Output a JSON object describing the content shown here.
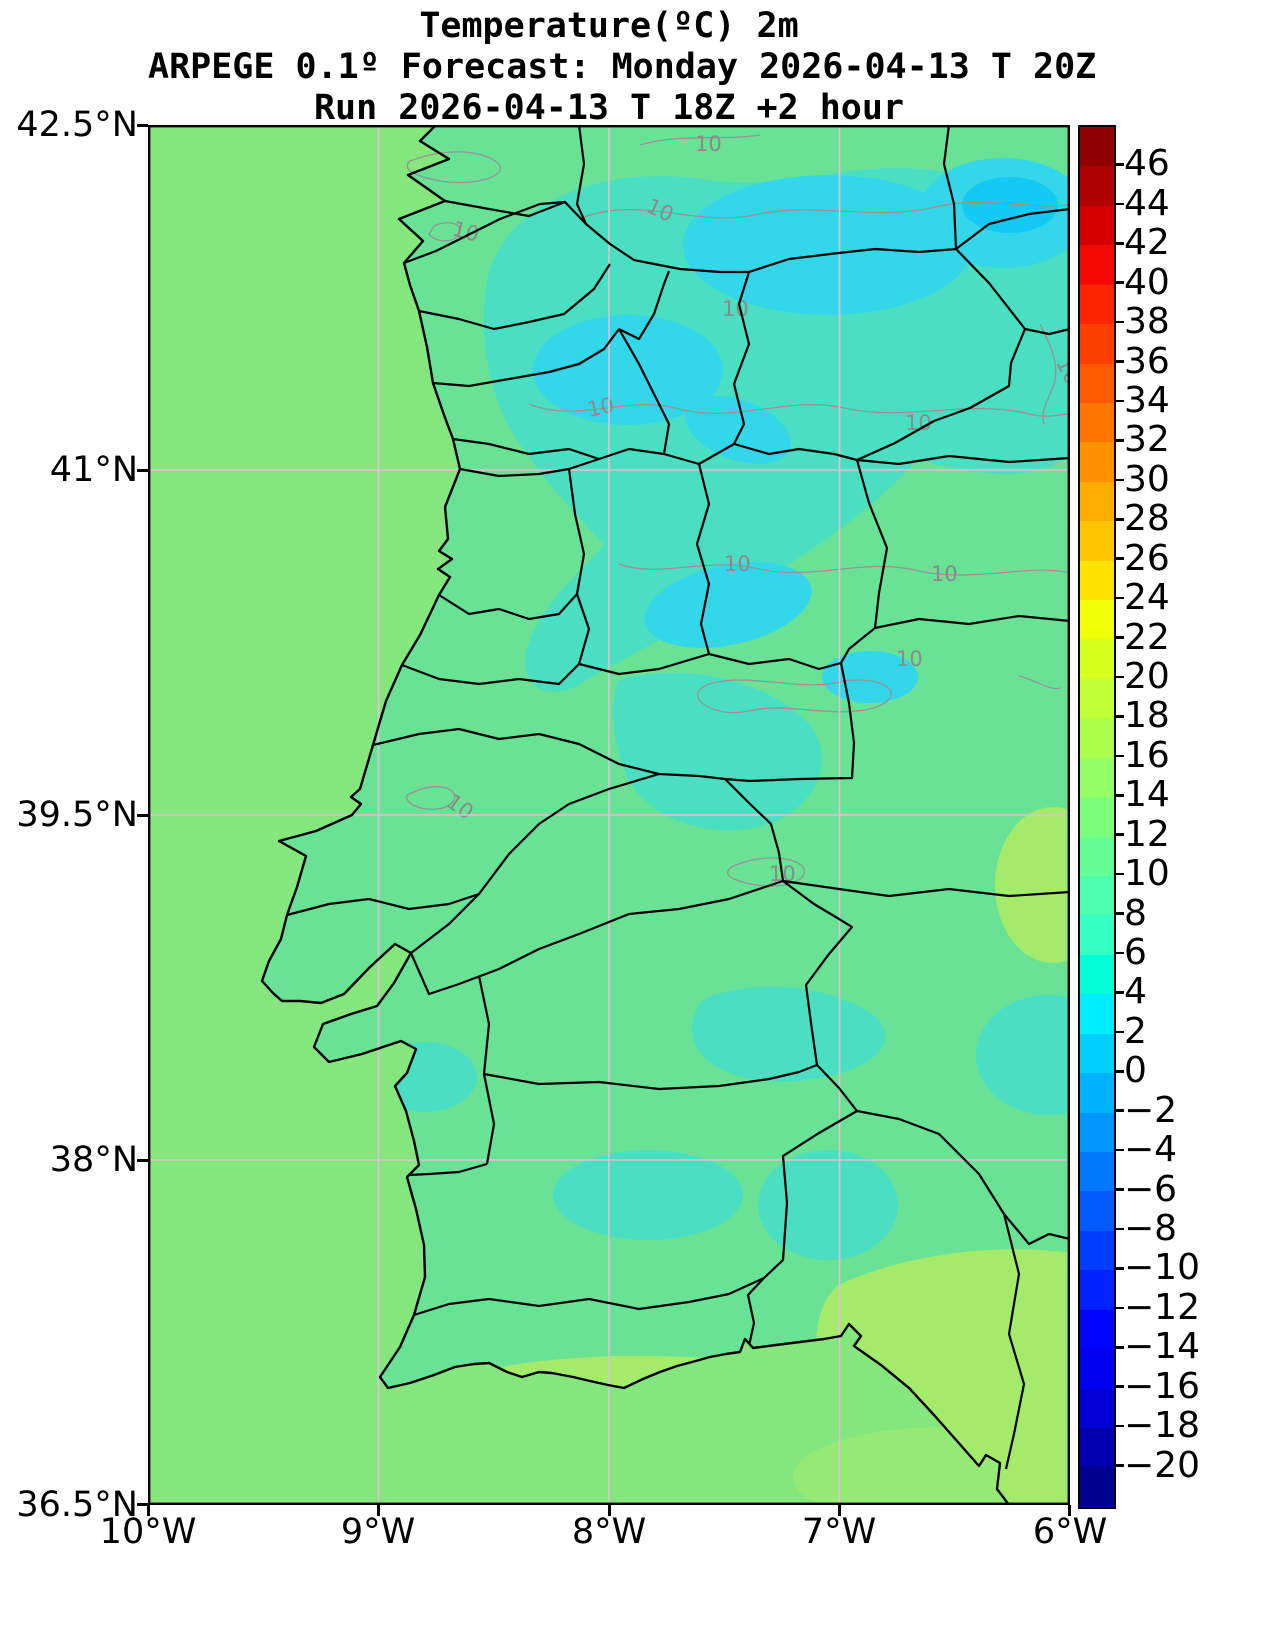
{
  "title": {
    "line1": "Temperature(ºC) 2m",
    "line2": "ARPEGE 0.1º Forecast: Monday 2026-04-13 T 20Z",
    "line3": "Run 2026-04-13 T 18Z +2 hour"
  },
  "axes": {
    "y_ticks": [
      "42.5°N",
      "41°N",
      "39.5°N",
      "38°N",
      "36.5°N"
    ],
    "x_ticks": [
      "10°W",
      "9°W",
      "8°W",
      "7°W",
      "6°W"
    ]
  },
  "map": {
    "isotherm_label": "10"
  },
  "colorbar": {
    "unit": "ºC",
    "ticks": [
      46,
      44,
      42,
      40,
      38,
      36,
      34,
      32,
      30,
      28,
      26,
      24,
      22,
      20,
      18,
      16,
      14,
      12,
      10,
      8,
      6,
      4,
      2,
      0,
      -2,
      -4,
      -6,
      -8,
      -10,
      -12,
      -14,
      -16,
      -18,
      -20
    ],
    "colors": [
      "#900000",
      "#B10000",
      "#D20000",
      "#F30900",
      "#FF2400",
      "#FF3F00",
      "#FF5A00",
      "#FF7500",
      "#FF9000",
      "#FFAB00",
      "#FFC600",
      "#FFE200",
      "#F1FF06",
      "#D9FF1E",
      "#C2FF35",
      "#AAFF4C",
      "#93FF64",
      "#7BFF7B",
      "#64FF93",
      "#4CFFAA",
      "#35FFC2",
      "#00FFD9",
      "#00EDFF",
      "#00D0FF",
      "#00B3FF",
      "#0095FF",
      "#0078FF",
      "#005BFF",
      "#003EFF",
      "#0021FF",
      "#0004FF",
      "#0000F3",
      "#0000D2",
      "#0000B1",
      "#000090"
    ]
  },
  "colors": {
    "ocean": "#86E67E",
    "land_base": "#69E296",
    "teal_cool": "#4ADFC2",
    "cyan_cold": "#33D7E9",
    "cyan_coldest": "#12CAF4",
    "warm_yellow_green": "#A4EB6B",
    "grid": "#DFC0D5",
    "isotherm_gray": "#949494",
    "boundary_black": "#000000"
  },
  "chart_data": {
    "type": "heatmap",
    "title": "Temperature(ºC) 2m",
    "model": "ARPEGE 0.1º",
    "forecast_valid": "Monday 2026-04-13 T 20Z",
    "run": "2026-04-13 T 18Z",
    "lead_time": "+2 hour",
    "x_axis": {
      "ticks": [
        "10°W",
        "9°W",
        "8°W",
        "7°W",
        "6°W"
      ],
      "range_deg_west": [
        10,
        6
      ]
    },
    "y_axis": {
      "ticks": [
        "42.5°N",
        "41°N",
        "39.5°N",
        "38°N",
        "36.5°N"
      ],
      "range_deg_north": [
        36.5,
        42.5
      ]
    },
    "colorbar": {
      "tick_max": 46,
      "tick_min": -20,
      "tick_step": 2,
      "colormap": "jet",
      "unit": "ºC"
    },
    "isotherm_contour_value": 10,
    "grid": true,
    "legend_position": "right-colorbar",
    "field_summary": [
      {
        "region": "Atlantic ocean west of Iberia",
        "approx_value_c": 13
      },
      {
        "region": "coastal lowlands of Portugal",
        "approx_value_c": 11
      },
      {
        "region": "northern and central interior highlands",
        "approx_value_c": 7
      },
      {
        "region": "north / northeast cold patches",
        "approx_value_c": 4
      },
      {
        "region": "coldest spots far north-northeast",
        "approx_value_c": 2
      },
      {
        "region": "southeast interior and Gulf of Cadiz corner",
        "approx_value_c": 15
      }
    ]
  }
}
